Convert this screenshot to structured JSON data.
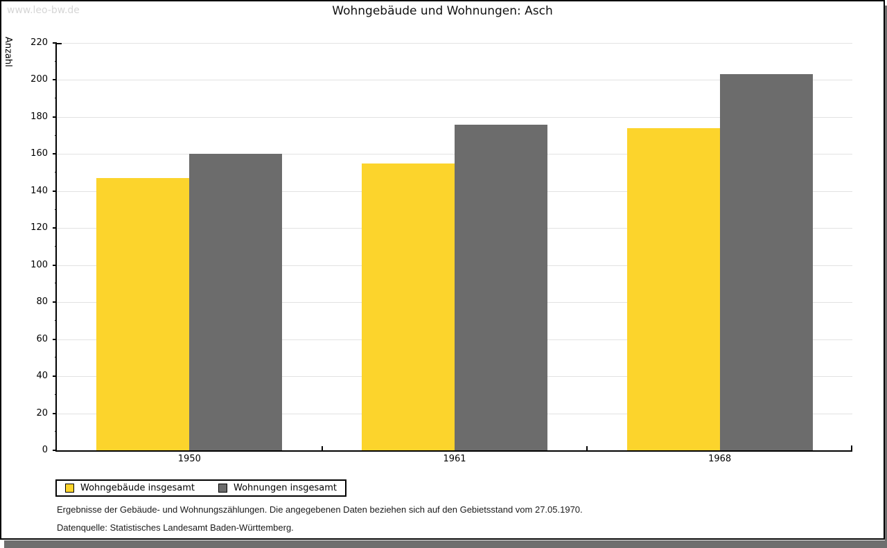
{
  "page": {
    "watermark": "www.leo-bw.de"
  },
  "chart_data": {
    "type": "bar",
    "title": "Wohngebäude und Wohnungen: Asch",
    "ylabel": "Anzahl",
    "xlabel": "",
    "categories": [
      "1950",
      "1961",
      "1968"
    ],
    "series": [
      {
        "name": "Wohngebäude insgesamt",
        "color": "#FCD42C",
        "values": [
          147,
          155,
          174
        ]
      },
      {
        "name": "Wohnungen insgesamt",
        "color": "#6C6C6C",
        "values": [
          160,
          176,
          203
        ]
      }
    ],
    "ylim": [
      0,
      220
    ],
    "ytick_step": 20,
    "yminor_step": 10,
    "grid": true,
    "gridline_color": "#E2E2E2",
    "legend_position": "bottom-left"
  },
  "footer": {
    "line1": "Ergebnisse der Gebäude- und Wohnungszählungen. Die angegebenen Daten beziehen sich auf den Gebietsstand vom 27.05.1970.",
    "line2": "Datenquelle: Statistisches Landesamt Baden-Württemberg."
  }
}
